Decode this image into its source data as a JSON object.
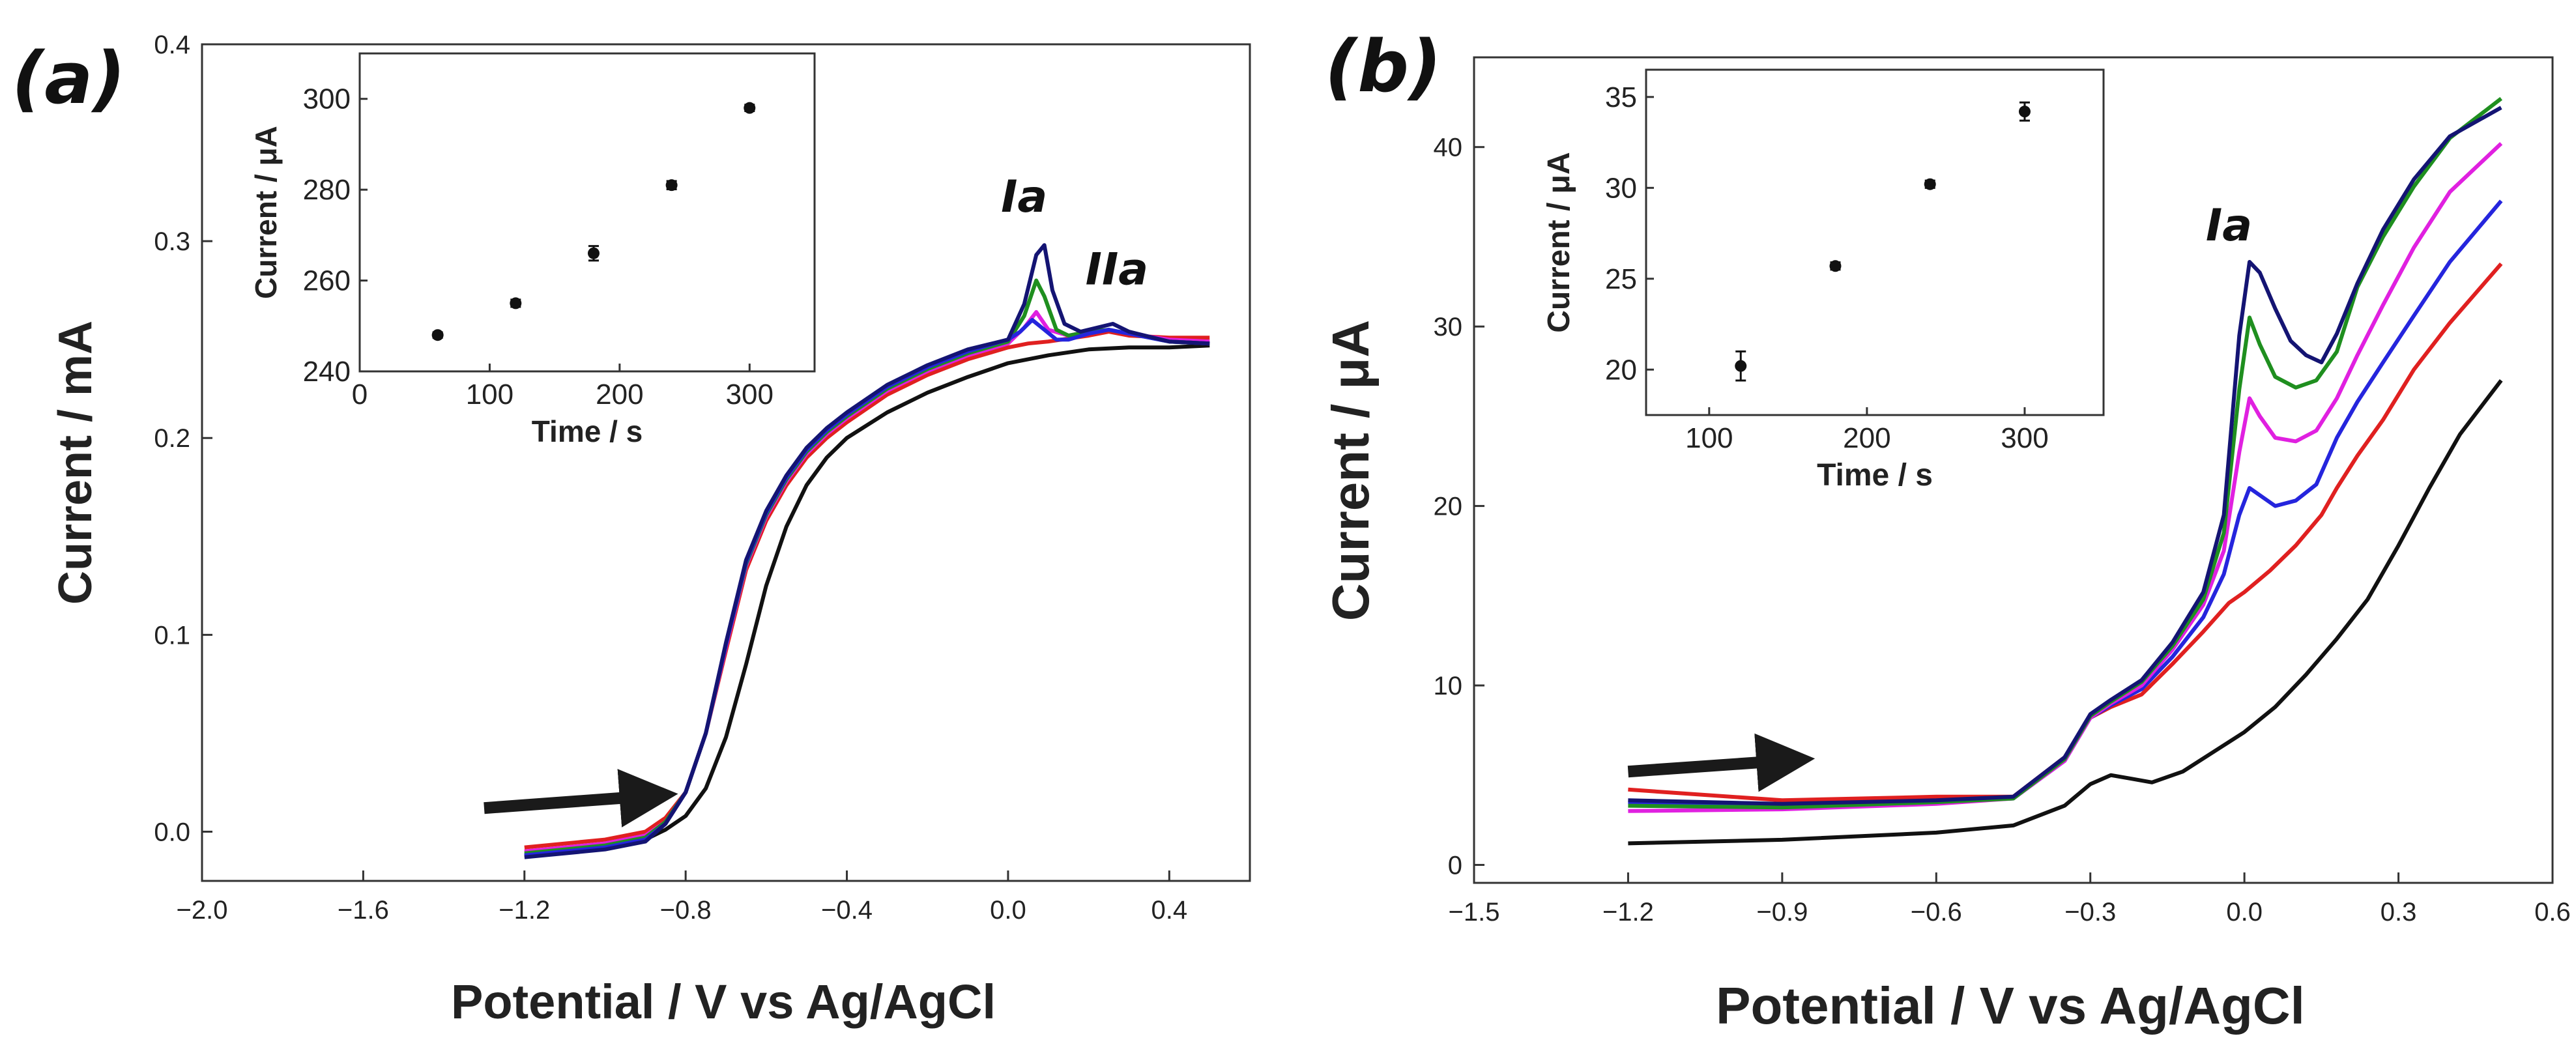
{
  "chart_data": [
    {
      "type": "line",
      "panel_label": "(a)",
      "xlabel": "Potential / V vs Ag/AgCl",
      "ylabel": "Current / mA",
      "xlim": [
        -2.0,
        0.6
      ],
      "ylim": [
        -0.025,
        0.4
      ],
      "xticks": [
        -2.0,
        -1.6,
        -1.2,
        -0.8,
        -0.4,
        0.0,
        0.4
      ],
      "xtick_labels": [
        "−2.0",
        "−1.6",
        "−1.2",
        "−0.8",
        "−0.4",
        "0.0",
        "0.4"
      ],
      "yticks": [
        0.0,
        0.1,
        0.2,
        0.3,
        0.4
      ],
      "ytick_labels": [
        "0.0",
        "0.1",
        "0.2",
        "0.3",
        "0.4"
      ],
      "annotations": [
        {
          "text": "Ia",
          "x": 0.04,
          "y": 0.315
        },
        {
          "text": "IIa",
          "x": 0.27,
          "y": 0.278
        }
      ],
      "arrow": {
        "x_from": -1.3,
        "x_to": -0.9,
        "y_from": 0.012,
        "y_to": 0.018
      },
      "series": [
        {
          "name": "black",
          "color": "#111111",
          "x": [
            -1.2,
            -1.0,
            -0.9,
            -0.85,
            -0.8,
            -0.75,
            -0.7,
            -0.65,
            -0.6,
            -0.55,
            -0.5,
            -0.45,
            -0.4,
            -0.3,
            -0.2,
            -0.1,
            0.0,
            0.1,
            0.2,
            0.3,
            0.4,
            0.5
          ],
          "y": [
            -0.012,
            -0.008,
            -0.004,
            0.001,
            0.008,
            0.022,
            0.048,
            0.085,
            0.125,
            0.155,
            0.176,
            0.19,
            0.2,
            0.213,
            0.223,
            0.231,
            0.238,
            0.242,
            0.245,
            0.246,
            0.246,
            0.247
          ]
        },
        {
          "name": "red",
          "color": "#e02020",
          "x": [
            -1.2,
            -1.0,
            -0.9,
            -0.85,
            -0.8,
            -0.75,
            -0.7,
            -0.65,
            -0.6,
            -0.55,
            -0.5,
            -0.45,
            -0.4,
            -0.3,
            -0.2,
            -0.1,
            0.0,
            0.05,
            0.1,
            0.2,
            0.25,
            0.3,
            0.4,
            0.5
          ],
          "y": [
            -0.008,
            -0.004,
            0.0,
            0.007,
            0.02,
            0.05,
            0.092,
            0.133,
            0.158,
            0.176,
            0.19,
            0.2,
            0.208,
            0.222,
            0.232,
            0.24,
            0.246,
            0.248,
            0.249,
            0.252,
            0.254,
            0.252,
            0.251,
            0.251
          ]
        },
        {
          "name": "magenta",
          "color": "#e020e0",
          "x": [
            -1.2,
            -1.0,
            -0.9,
            -0.85,
            -0.8,
            -0.75,
            -0.7,
            -0.65,
            -0.6,
            -0.55,
            -0.5,
            -0.45,
            -0.4,
            -0.3,
            -0.2,
            -0.1,
            0.0,
            0.04,
            0.07,
            0.1,
            0.15,
            0.2,
            0.25,
            0.3,
            0.4,
            0.5
          ],
          "y": [
            -0.01,
            -0.006,
            -0.002,
            0.005,
            0.02,
            0.05,
            0.094,
            0.135,
            0.16,
            0.178,
            0.192,
            0.202,
            0.21,
            0.224,
            0.234,
            0.242,
            0.248,
            0.256,
            0.264,
            0.255,
            0.252,
            0.254,
            0.255,
            0.253,
            0.25,
            0.249
          ]
        },
        {
          "name": "green",
          "color": "#1f8f1f",
          "x": [
            -1.2,
            -1.0,
            -0.9,
            -0.85,
            -0.8,
            -0.75,
            -0.7,
            -0.65,
            -0.6,
            -0.55,
            -0.5,
            -0.45,
            -0.4,
            -0.3,
            -0.2,
            -0.1,
            0.0,
            0.04,
            0.07,
            0.09,
            0.12,
            0.15,
            0.2,
            0.25,
            0.3,
            0.4,
            0.5
          ],
          "y": [
            -0.011,
            -0.007,
            -0.003,
            0.005,
            0.02,
            0.05,
            0.095,
            0.136,
            0.161,
            0.179,
            0.193,
            0.203,
            0.211,
            0.225,
            0.235,
            0.243,
            0.249,
            0.262,
            0.28,
            0.272,
            0.255,
            0.252,
            0.254,
            0.255,
            0.253,
            0.249,
            0.248
          ]
        },
        {
          "name": "blue",
          "color": "#2525dd",
          "x": [
            -1.2,
            -1.0,
            -0.9,
            -0.85,
            -0.8,
            -0.75,
            -0.7,
            -0.65,
            -0.6,
            -0.55,
            -0.5,
            -0.45,
            -0.4,
            -0.3,
            -0.2,
            -0.1,
            0.0,
            0.03,
            0.06,
            0.09,
            0.12,
            0.15,
            0.2,
            0.25,
            0.3,
            0.4,
            0.5
          ],
          "y": [
            -0.012,
            -0.008,
            -0.004,
            0.004,
            0.02,
            0.05,
            0.095,
            0.137,
            0.162,
            0.18,
            0.194,
            0.204,
            0.212,
            0.226,
            0.236,
            0.244,
            0.25,
            0.254,
            0.26,
            0.255,
            0.25,
            0.25,
            0.253,
            0.255,
            0.253,
            0.249,
            0.248
          ]
        },
        {
          "name": "navy",
          "color": "#141473",
          "x": [
            -1.2,
            -1.0,
            -0.9,
            -0.85,
            -0.8,
            -0.75,
            -0.7,
            -0.65,
            -0.6,
            -0.55,
            -0.5,
            -0.45,
            -0.4,
            -0.3,
            -0.2,
            -0.1,
            0.0,
            0.04,
            0.07,
            0.09,
            0.11,
            0.14,
            0.18,
            0.22,
            0.26,
            0.3,
            0.4,
            0.5
          ],
          "y": [
            -0.013,
            -0.009,
            -0.005,
            0.004,
            0.02,
            0.05,
            0.096,
            0.138,
            0.163,
            0.181,
            0.195,
            0.205,
            0.213,
            0.227,
            0.237,
            0.245,
            0.25,
            0.268,
            0.293,
            0.298,
            0.275,
            0.258,
            0.254,
            0.256,
            0.258,
            0.254,
            0.249,
            0.248
          ]
        }
      ],
      "inset": {
        "type": "scatter",
        "xlabel": "Time / s",
        "ylabel": "Current / μA",
        "xlim": [
          0,
          350
        ],
        "ylim": [
          240,
          310
        ],
        "xticks": [
          0,
          100,
          200,
          300
        ],
        "yticks": [
          240,
          260,
          280,
          300
        ],
        "x": [
          60,
          120,
          180,
          240,
          300
        ],
        "y": [
          248,
          255,
          266,
          281,
          298
        ],
        "err": [
          0.6,
          0.8,
          1.6,
          0.9,
          0.7
        ]
      }
    },
    {
      "type": "line",
      "panel_label": "(b)",
      "xlabel": "Potential / V vs Ag/AgCl",
      "ylabel": "Current / μA",
      "xlim": [
        -1.5,
        0.6
      ],
      "ylim": [
        -1,
        45
      ],
      "xticks": [
        -1.5,
        -1.2,
        -0.9,
        -0.6,
        -0.3,
        0.0,
        0.3,
        0.6
      ],
      "xtick_labels": [
        "−1.5",
        "−1.2",
        "−0.9",
        "−0.6",
        "−0.3",
        "0.0",
        "0.3",
        "0.6"
      ],
      "yticks": [
        0,
        10,
        20,
        30,
        40
      ],
      "ytick_labels": [
        "0",
        "10",
        "20",
        "30",
        "40"
      ],
      "annotations": [
        {
          "text": "Ia",
          "x": -0.03,
          "y": 34.8
        }
      ],
      "arrow": {
        "x_from": -1.2,
        "x_to": -0.9,
        "y_from": 5.2,
        "y_to": 5.8
      },
      "series": [
        {
          "name": "black",
          "color": "#111111",
          "x": [
            -1.2,
            -0.9,
            -0.6,
            -0.45,
            -0.35,
            -0.3,
            -0.26,
            -0.22,
            -0.18,
            -0.12,
            -0.06,
            0.0,
            0.06,
            0.12,
            0.18,
            0.24,
            0.3,
            0.36,
            0.42,
            0.5
          ],
          "y": [
            1.2,
            1.4,
            1.8,
            2.2,
            3.3,
            4.5,
            5.0,
            4.8,
            4.6,
            5.2,
            6.3,
            7.4,
            8.8,
            10.6,
            12.6,
            14.8,
            17.8,
            21.0,
            24.0,
            27.0
          ]
        },
        {
          "name": "red",
          "color": "#e02020",
          "x": [
            -1.2,
            -0.9,
            -0.6,
            -0.45,
            -0.35,
            -0.3,
            -0.26,
            -0.2,
            -0.14,
            -0.08,
            -0.03,
            0.0,
            0.05,
            0.1,
            0.15,
            0.18,
            0.22,
            0.27,
            0.33,
            0.4,
            0.5
          ],
          "y": [
            4.2,
            3.6,
            3.8,
            3.8,
            6.0,
            8.2,
            8.8,
            9.5,
            11.2,
            13.0,
            14.6,
            15.2,
            16.4,
            17.8,
            19.5,
            21.0,
            22.8,
            24.8,
            27.6,
            30.2,
            33.5
          ]
        },
        {
          "name": "blue",
          "color": "#2525dd",
          "x": [
            -1.2,
            -0.9,
            -0.6,
            -0.45,
            -0.35,
            -0.3,
            -0.26,
            -0.2,
            -0.14,
            -0.08,
            -0.04,
            -0.01,
            0.01,
            0.03,
            0.06,
            0.1,
            0.14,
            0.18,
            0.22,
            0.27,
            0.33,
            0.4,
            0.5
          ],
          "y": [
            3.5,
            3.3,
            3.5,
            3.7,
            5.8,
            8.2,
            8.9,
            9.8,
            11.6,
            13.8,
            16.2,
            19.5,
            21.0,
            20.6,
            20.0,
            20.3,
            21.2,
            23.8,
            25.8,
            28.0,
            30.6,
            33.6,
            37.0
          ]
        },
        {
          "name": "magenta",
          "color": "#e020e0",
          "x": [
            -1.2,
            -0.9,
            -0.6,
            -0.45,
            -0.35,
            -0.3,
            -0.26,
            -0.2,
            -0.14,
            -0.08,
            -0.04,
            -0.01,
            0.01,
            0.03,
            0.06,
            0.1,
            0.14,
            0.18,
            0.22,
            0.27,
            0.33,
            0.4,
            0.5
          ],
          "y": [
            3.0,
            3.1,
            3.4,
            3.7,
            5.8,
            8.2,
            9.0,
            10.0,
            12.0,
            14.5,
            17.5,
            23.0,
            26.0,
            25.0,
            23.8,
            23.6,
            24.2,
            26.0,
            28.4,
            31.2,
            34.4,
            37.5,
            40.2
          ]
        },
        {
          "name": "green",
          "color": "#1f8f1f",
          "x": [
            -1.2,
            -0.9,
            -0.6,
            -0.45,
            -0.35,
            -0.3,
            -0.26,
            -0.2,
            -0.14,
            -0.08,
            -0.04,
            -0.01,
            0.01,
            0.03,
            0.06,
            0.1,
            0.14,
            0.18,
            0.22,
            0.27,
            0.33,
            0.4,
            0.5
          ],
          "y": [
            3.3,
            3.2,
            3.5,
            3.7,
            5.9,
            8.3,
            9.1,
            10.2,
            12.2,
            14.8,
            18.5,
            26.5,
            30.5,
            29.0,
            27.2,
            26.6,
            27.0,
            28.6,
            32.2,
            35.0,
            37.8,
            40.5,
            42.7
          ]
        },
        {
          "name": "navy",
          "color": "#141473",
          "x": [
            -1.2,
            -0.9,
            -0.6,
            -0.45,
            -0.35,
            -0.3,
            -0.26,
            -0.2,
            -0.14,
            -0.08,
            -0.04,
            -0.01,
            0.01,
            0.03,
            0.06,
            0.09,
            0.12,
            0.15,
            0.18,
            0.22,
            0.27,
            0.33,
            0.4,
            0.5
          ],
          "y": [
            3.6,
            3.4,
            3.6,
            3.8,
            6.0,
            8.4,
            9.2,
            10.3,
            12.4,
            15.2,
            19.5,
            29.5,
            33.6,
            33.0,
            31.0,
            29.2,
            28.4,
            28.0,
            29.6,
            32.4,
            35.4,
            38.2,
            40.6,
            42.2
          ]
        }
      ],
      "inset": {
        "type": "scatter",
        "xlabel": "Time / s",
        "ylabel": "Current / μA",
        "xlim": [
          60,
          350
        ],
        "ylim": [
          17.5,
          36.5
        ],
        "xticks": [
          100,
          200,
          300
        ],
        "yticks": [
          20,
          25,
          30,
          35
        ],
        "x": [
          120,
          180,
          240,
          300
        ],
        "y": [
          20.2,
          25.7,
          30.2,
          34.2
        ],
        "err": [
          0.8,
          0.2,
          0.2,
          0.5
        ]
      }
    }
  ]
}
